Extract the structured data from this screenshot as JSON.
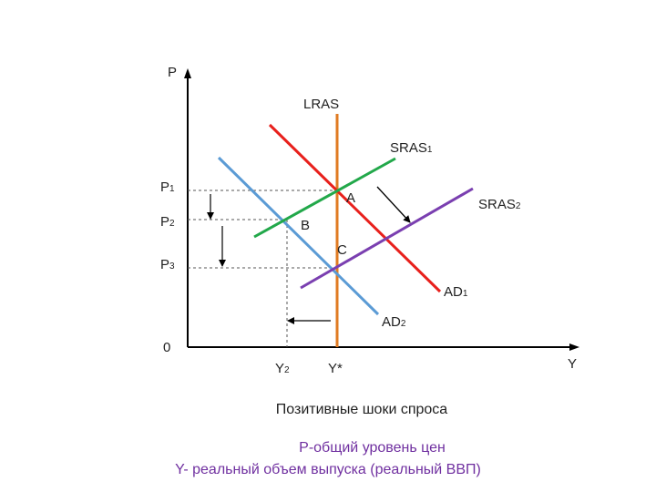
{
  "diagram": {
    "axes": {
      "y_label": "P",
      "x_label": "Y",
      "origin": "0"
    },
    "price_levels": [
      {
        "main": "P",
        "sub": "1"
      },
      {
        "main": "P",
        "sub": "2"
      },
      {
        "main": "P",
        "sub": "3"
      }
    ],
    "output_levels": [
      {
        "main": "Y",
        "sub": "2"
      },
      {
        "main": "Y*",
        "sub": ""
      }
    ],
    "curves": {
      "lras": {
        "main": "LRAS",
        "sub": "",
        "color": "#e07b22"
      },
      "sras1": {
        "main": "SRAS",
        "sub": "1",
        "color": "#22a84a"
      },
      "sras2": {
        "main": "SRAS",
        "sub": "2",
        "color": "#7a3fb0"
      },
      "ad1": {
        "main": "AD",
        "sub": "1",
        "color": "#e8201c"
      },
      "ad2": {
        "main": "AD",
        "sub": "2",
        "color": "#5b9bd5"
      }
    },
    "points": [
      "A",
      "B",
      "C"
    ]
  },
  "caption": {
    "title": "Позитивные  шоки спроса",
    "legend_line1": "P-общий уровень цен",
    "legend_line2": "Y- реальный объем выпуска (реальный ВВП)",
    "legend_color": "#7030a0"
  }
}
